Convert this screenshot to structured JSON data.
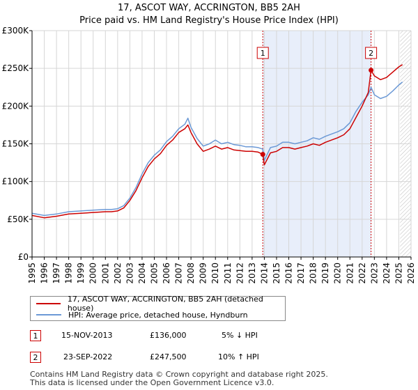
{
  "title": "17, ASCOT WAY, ACCRINGTON, BB5 2AH",
  "subtitle": "Price paid vs. HM Land Registry's House Price Index (HPI)",
  "colors": {
    "property": "#cc0000",
    "hpi": "#6b99d6",
    "shade": "#e8eefa",
    "grid": "#d6d6d6",
    "vline": "#cc0000"
  },
  "chart_data": {
    "type": "line",
    "title": "17, ASCOT WAY, ACCRINGTON, BB5 2AH",
    "subtitle": "Price paid vs. HM Land Registry's House Price Index (HPI)",
    "xlabel": "",
    "ylabel": "",
    "xlim": [
      1995,
      2026
    ],
    "ylim": [
      0,
      300000
    ],
    "y_ticks": [
      0,
      50000,
      100000,
      150000,
      200000,
      250000,
      300000
    ],
    "y_tick_labels": [
      "£0",
      "£50K",
      "£100K",
      "£150K",
      "£200K",
      "£250K",
      "£300K"
    ],
    "x_ticks": [
      1995,
      1996,
      1997,
      1998,
      1999,
      2000,
      2001,
      2002,
      2003,
      2004,
      2005,
      2006,
      2007,
      2008,
      2009,
      2010,
      2011,
      2012,
      2013,
      2014,
      2015,
      2016,
      2017,
      2018,
      2019,
      2020,
      2021,
      2022,
      2023,
      2024,
      2025,
      2026
    ],
    "x_tick_labels": [
      "1995",
      "1996",
      "1997",
      "1998",
      "1999",
      "2000",
      "2001",
      "2002",
      "2003",
      "2004",
      "2005",
      "2006",
      "2007",
      "2008",
      "2009",
      "2010",
      "2011",
      "2012",
      "2013",
      "2014",
      "2015",
      "2016",
      "2017",
      "2018",
      "2019",
      "2020",
      "2021",
      "2022",
      "2023",
      "2024",
      "2025",
      "2026"
    ],
    "grid": true,
    "shaded_region": [
      2013.875,
      2022.73
    ],
    "forecast_hatch_from": 2025.1,
    "series": [
      {
        "name": "17, ASCOT WAY, ACCRINGTON, BB5 2AH (detached house)",
        "color": "#cc0000",
        "x": [
          1995,
          1996,
          1997,
          1998,
          1999,
          2000,
          2001,
          2001.5,
          2002,
          2002.5,
          2003,
          2003.5,
          2004,
          2004.5,
          2005,
          2005.5,
          2006,
          2006.5,
          2007,
          2007.5,
          2007.75,
          2008,
          2008.5,
          2009,
          2009.5,
          2010,
          2010.5,
          2011,
          2011.5,
          2012,
          2012.5,
          2013,
          2013.5,
          2013.875,
          2014,
          2014.5,
          2015,
          2015.5,
          2016,
          2016.5,
          2017,
          2017.5,
          2018,
          2018.5,
          2019,
          2019.5,
          2020,
          2020.5,
          2021,
          2021.5,
          2022,
          2022.5,
          2022.73,
          2023,
          2023.5,
          2024,
          2024.5,
          2025,
          2025.3
        ],
        "y": [
          55000,
          52000,
          54000,
          57000,
          58000,
          59000,
          60000,
          60000,
          61000,
          65000,
          75000,
          88000,
          105000,
          120000,
          130000,
          137000,
          148000,
          155000,
          165000,
          170000,
          175000,
          165000,
          150000,
          140000,
          143000,
          147000,
          143000,
          145000,
          142000,
          141000,
          140000,
          140000,
          139000,
          136000,
          122000,
          138000,
          140000,
          145000,
          145000,
          143000,
          145000,
          147000,
          150000,
          148000,
          152000,
          155000,
          158000,
          162000,
          170000,
          185000,
          200000,
          218000,
          247500,
          240000,
          235000,
          238000,
          245000,
          252000,
          255000
        ]
      },
      {
        "name": "HPI: Average price, detached house, Hyndburn",
        "color": "#6b99d6",
        "x": [
          1995,
          1996,
          1997,
          1998,
          1999,
          2000,
          2001,
          2001.5,
          2002,
          2002.5,
          2003,
          2003.5,
          2004,
          2004.5,
          2005,
          2005.5,
          2006,
          2006.5,
          2007,
          2007.5,
          2007.75,
          2008,
          2008.5,
          2009,
          2009.5,
          2010,
          2010.5,
          2011,
          2011.5,
          2012,
          2012.5,
          2013,
          2013.5,
          2013.875,
          2014,
          2014.5,
          2015,
          2015.5,
          2016,
          2016.5,
          2017,
          2017.5,
          2018,
          2018.5,
          2019,
          2019.5,
          2020,
          2020.5,
          2021,
          2021.5,
          2022,
          2022.5,
          2022.73,
          2023,
          2023.5,
          2024,
          2024.5,
          2025,
          2025.3
        ],
        "y": [
          58000,
          55000,
          57000,
          60000,
          61000,
          62000,
          63000,
          63000,
          64000,
          68000,
          78000,
          92000,
          110000,
          125000,
          135000,
          142000,
          153000,
          160000,
          170000,
          176000,
          184000,
          172000,
          157000,
          147000,
          150000,
          155000,
          150000,
          152000,
          149000,
          148000,
          146000,
          146000,
          145000,
          143000,
          128000,
          145000,
          147000,
          152000,
          152000,
          150000,
          152000,
          154000,
          158000,
          156000,
          160000,
          163000,
          166000,
          170000,
          178000,
          193000,
          205000,
          215000,
          225000,
          215000,
          210000,
          213000,
          220000,
          228000,
          232000
        ]
      }
    ],
    "annotations": [
      {
        "label": "1",
        "x": 2013.875,
        "y": 136000
      },
      {
        "label": "2",
        "x": 2022.73,
        "y": 247500
      }
    ]
  },
  "legend": {
    "property_label": "17, ASCOT WAY, ACCRINGTON, BB5 2AH (detached house)",
    "hpi_label": "HPI: Average price, detached house, Hyndburn"
  },
  "transactions": [
    {
      "num": "1",
      "date": "15-NOV-2013",
      "price": "£136,000",
      "hpi": "5% ↓ HPI"
    },
    {
      "num": "2",
      "date": "23-SEP-2022",
      "price": "£247,500",
      "hpi": "10% ↑ HPI"
    }
  ],
  "footer": {
    "line1": "Contains HM Land Registry data © Crown copyright and database right 2025.",
    "line2": "This data is licensed under the Open Government Licence v3.0."
  }
}
